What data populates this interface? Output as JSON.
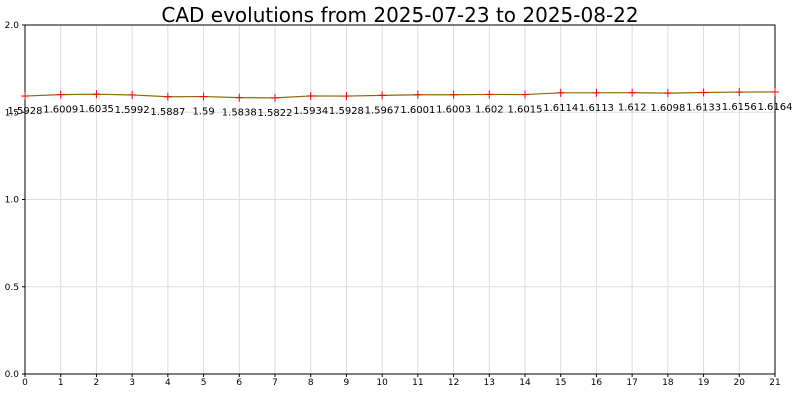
{
  "chart_data": {
    "type": "line",
    "title": "CAD evolutions from 2025-07-23 to 2025-08-22",
    "xlabel": "",
    "ylabel": "",
    "x": [
      0,
      1,
      2,
      3,
      4,
      5,
      6,
      7,
      8,
      9,
      10,
      11,
      12,
      13,
      14,
      15,
      16,
      17,
      18,
      19,
      20,
      21
    ],
    "series": [
      {
        "values": [
          1.5928,
          1.6009,
          1.6035,
          1.5992,
          1.5887,
          1.59,
          1.5838,
          1.5822,
          1.5934,
          1.5928,
          1.5967,
          1.6001,
          1.6003,
          1.602,
          1.6015,
          1.6114,
          1.6113,
          1.612,
          1.6098,
          1.6133,
          1.6156,
          1.6164
        ],
        "labels": [
          "1.5928",
          "1.6009",
          "1.6035",
          "1.5992",
          "1.5887",
          "1.59",
          "1.5838",
          "1.5822",
          "1.5934",
          "1.5928",
          "1.5967",
          "1.6001",
          "1.6003",
          "1.602",
          "1.6015",
          "1.6114",
          "1.6113",
          "1.612",
          "1.6098",
          "1.6133",
          "1.6156",
          "1.6164"
        ]
      }
    ],
    "xlim": [
      0,
      21
    ],
    "ylim": [
      0,
      2.0
    ],
    "x_ticks": [
      "0",
      "1",
      "2",
      "3",
      "4",
      "5",
      "6",
      "7",
      "8",
      "9",
      "10",
      "11",
      "12",
      "13",
      "14",
      "15",
      "16",
      "17",
      "18",
      "19",
      "20",
      "21"
    ],
    "y_ticks": [
      "0.0",
      "0.5",
      "1.0",
      "1.5",
      "2.0"
    ],
    "y_tick_values": [
      0,
      0.5,
      1.0,
      1.5,
      2.0
    ],
    "grid": true,
    "line_color": "#8b6b00",
    "marker_color": "#ff0000",
    "marker": "plus"
  }
}
